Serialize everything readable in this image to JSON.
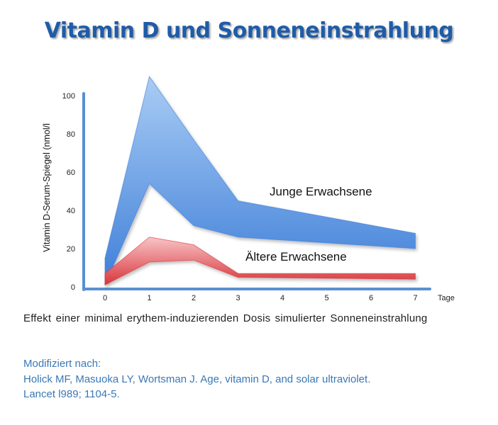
{
  "slide": {
    "title": "Vitamin D und Sonneneinstrahlung",
    "caption": "Effekt einer minimal erythem-induzierenden Dosis simulierter Sonneneinstrahlung",
    "reference": {
      "line1": "Modifiziert nach:",
      "line2": "Holick MF, Masuoka LY, Wortsman J. Age, vitamin D, and solar ultraviolet.",
      "line3": "Lancet l989; 1104-5."
    }
  },
  "colors": {
    "title": "#1f5ca8",
    "axis": "#5b8fd0",
    "young_fill_top": "#a9ccf5",
    "young_fill_bottom": "#3f7fd8",
    "older_fill_top": "#f8c4c7",
    "older_fill_bottom": "#d7353a",
    "reference_text": "#3a78b5"
  },
  "chart_data": {
    "type": "area",
    "xlabel": "Tage",
    "ylabel": "Vitamin D-Serum-Spiegel (nmol/l",
    "xlim": [
      0,
      7
    ],
    "ylim": [
      0,
      100
    ],
    "x_ticks": [
      0,
      1,
      2,
      3,
      4,
      5,
      6,
      7
    ],
    "y_ticks": [
      0,
      20,
      40,
      60,
      80,
      100
    ],
    "grid": false,
    "series": [
      {
        "name": "Junge Erwachsene",
        "type": "band",
        "x": [
          0,
          1,
          2,
          3,
          7
        ],
        "upper": [
          15,
          110,
          77,
          45,
          28
        ],
        "lower": [
          1,
          54,
          32,
          26,
          20
        ]
      },
      {
        "name": "Ältere Erwachsene",
        "type": "band",
        "x": [
          0,
          1,
          2,
          3,
          7
        ],
        "upper": [
          7,
          26,
          22,
          7,
          7
        ],
        "lower": [
          1,
          13,
          14,
          5,
          4
        ]
      }
    ]
  }
}
